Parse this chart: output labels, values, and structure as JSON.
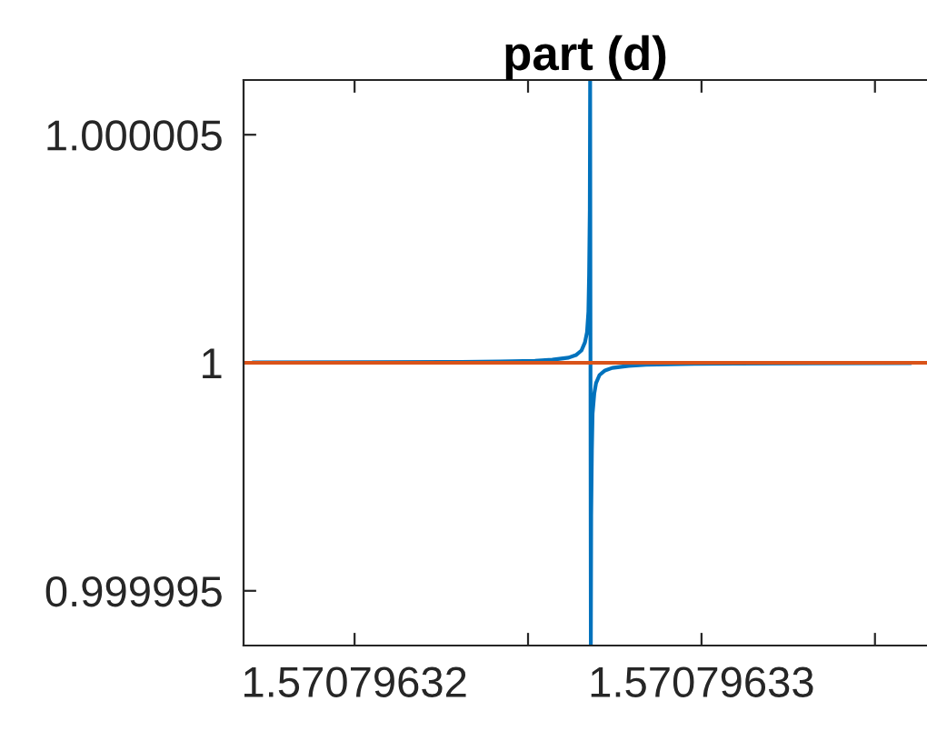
{
  "chart_data": {
    "type": "line",
    "title": "part (d)",
    "xlim": [
      1.5707963168,
      1.5707963365
    ],
    "ylim": [
      0.9999938,
      1.0000062
    ],
    "xticks": [
      1.57079632,
      {
        "value": 1.570796325,
        "label": null
      },
      1.57079633,
      {
        "value": 1.570796335,
        "label": null
      }
    ],
    "yticks": [
      0.999995,
      {
        "value": 1,
        "label": "1"
      },
      1.000005
    ],
    "grid": false,
    "legend": false,
    "marker": "none",
    "line_style": "solid",
    "series": [
      {
        "color": "#0072bd",
        "x": [
          1.5707963171,
          1.5707963205,
          1.5707963226,
          1.5707963242,
          1.5707963252,
          1.5707963257,
          1.57079632617,
          1.57079632638,
          1.57079632654,
          1.57079632664,
          1.5707963267,
          1.57079632674,
          1.57079632676,
          1.57079632678,
          1.57079632679,
          1.57079632681,
          1.57079632682,
          1.57079632684,
          1.57079632686,
          1.57079632691,
          1.57079632696,
          1.57079632706,
          1.57079632722,
          1.57079632743,
          1.5707963279,
          1.5707963284,
          1.5707963294,
          1.570796331,
          1.5707963331,
          1.570796336
        ],
        "values": [
          1.000000007,
          1.000000011,
          1.000000017,
          1.000000027,
          1.000000045,
          1.000000067,
          1.000000112,
          1.000000168,
          1.000000269,
          1.000000447,
          1.00000067,
          1.00000112,
          1.00000192,
          1.00000336,
          1.0000062,
          0.9999938,
          0.99999664,
          0.99999808,
          0.99999888,
          0.99999933,
          0.999999553,
          0.999999731,
          0.999999832,
          0.999999888,
          0.999999933,
          0.999999955,
          0.999999973,
          0.999999983,
          0.999999989,
          0.999999992
        ]
      },
      {
        "color": "#d95319",
        "x": [
          1.5707963168,
          1.5707963365
        ],
        "values": [
          1,
          1
        ]
      }
    ]
  }
}
